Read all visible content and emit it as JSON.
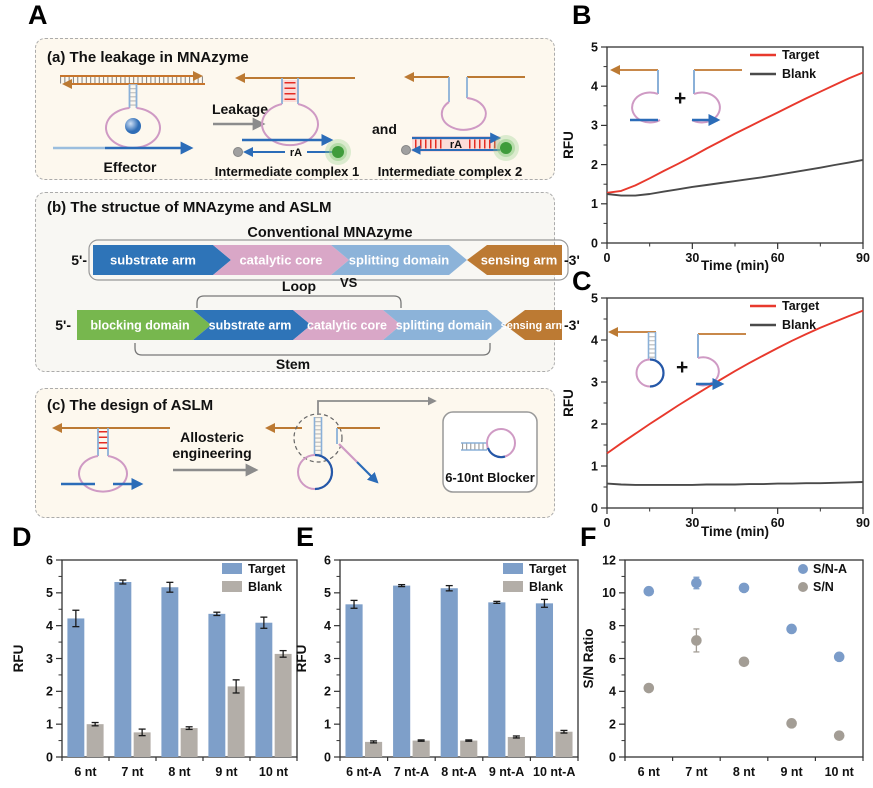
{
  "panels": {
    "A": "A",
    "B": "B",
    "C": "C",
    "D": "D",
    "E": "E",
    "F": "F"
  },
  "symbols": {
    "plus": "+"
  },
  "panelA": {
    "a": {
      "title": "(a)  The leakage in MNAzyme",
      "effector": "Effector",
      "leakage": "Leakage",
      "and": "and",
      "ic1": "Intermediate complex 1",
      "ic2": "Intermediate complex 2",
      "rA": "rA"
    },
    "b": {
      "title": "(b)  The structue of MNAzyme and ASLM",
      "conventional": "Conventional MNAzyme",
      "vs": "VS",
      "loop": "Loop",
      "stem": "Stem",
      "five": "5'-",
      "three": "-3'",
      "row1": [
        "substrate arm",
        "catalytic core",
        "splitting domain",
        "sensing arm"
      ],
      "row2": [
        "blocking domain",
        "substrate arm",
        "catalytic core",
        "splitting domain",
        "sensing arm"
      ]
    },
    "c": {
      "title": "(c)  The design of ASLM",
      "arrow1": "Allosteric",
      "arrow2": "engineering",
      "blocker": "6-10nt Blocker"
    }
  },
  "colors": {
    "target_red": "#e8392d",
    "blank_dark": "#4a4a4a",
    "bar_blue": "#7e9fc9",
    "bar_gray": "#b3aea8",
    "dot_blue": "#7b9cc9",
    "dot_gray": "#a39d95",
    "seg_blue": "#2e74b8",
    "seg_pink": "#d9a7c7",
    "seg_lightblue": "#8cb3d9",
    "seg_green": "#77b74e",
    "seg_brown": "#bc7a33"
  },
  "chart_data": [
    {
      "id": "B",
      "type": "line",
      "xlabel": "Time (min)",
      "ylabel": "RFU",
      "xlim": [
        0,
        90
      ],
      "ylim": [
        0,
        5
      ],
      "xticks": [
        0,
        30,
        60,
        90
      ],
      "x_minor_step": 15,
      "yticks": [
        0,
        1,
        2,
        3,
        4,
        5
      ],
      "y_minor_step": 0.5,
      "x": [
        0,
        5,
        10,
        15,
        20,
        25,
        30,
        35,
        40,
        45,
        50,
        55,
        60,
        65,
        70,
        75,
        80,
        85,
        90
      ],
      "series": [
        {
          "name": "Target",
          "color": "#e8392d",
          "y": [
            1.28,
            1.33,
            1.47,
            1.65,
            1.84,
            2.02,
            2.21,
            2.41,
            2.6,
            2.79,
            2.97,
            3.15,
            3.33,
            3.51,
            3.69,
            3.86,
            4.03,
            4.2,
            4.35
          ]
        },
        {
          "name": "Blank",
          "color": "#4a4a4a",
          "y": [
            1.25,
            1.21,
            1.21,
            1.25,
            1.31,
            1.37,
            1.43,
            1.48,
            1.53,
            1.58,
            1.63,
            1.68,
            1.74,
            1.8,
            1.86,
            1.92,
            1.99,
            2.05,
            2.12
          ]
        }
      ]
    },
    {
      "id": "C",
      "type": "line",
      "xlabel": "Time (min)",
      "ylabel": "RFU",
      "xlim": [
        0,
        90
      ],
      "ylim": [
        0,
        5
      ],
      "xticks": [
        0,
        30,
        60,
        90
      ],
      "x_minor_step": 15,
      "yticks": [
        0,
        1,
        2,
        3,
        4,
        5
      ],
      "y_minor_step": 0.5,
      "x": [
        0,
        5,
        10,
        15,
        20,
        25,
        30,
        35,
        40,
        45,
        50,
        55,
        60,
        65,
        70,
        75,
        80,
        85,
        90
      ],
      "series": [
        {
          "name": "Target",
          "color": "#e8392d",
          "y": [
            1.3,
            1.54,
            1.77,
            2.0,
            2.22,
            2.44,
            2.65,
            2.86,
            3.06,
            3.26,
            3.45,
            3.63,
            3.81,
            3.98,
            4.14,
            4.29,
            4.43,
            4.57,
            4.7
          ]
        },
        {
          "name": "Blank",
          "color": "#4a4a4a",
          "y": [
            0.58,
            0.56,
            0.55,
            0.55,
            0.55,
            0.55,
            0.55,
            0.56,
            0.56,
            0.56,
            0.57,
            0.57,
            0.58,
            0.58,
            0.59,
            0.59,
            0.6,
            0.61,
            0.62
          ]
        }
      ]
    },
    {
      "id": "D",
      "type": "bar",
      "ylabel": "RFU",
      "ylim": [
        0,
        6
      ],
      "yticks": [
        0,
        1,
        2,
        3,
        4,
        5,
        6
      ],
      "y_minor_step": 0.5,
      "categories": [
        "6 nt",
        "7 nt",
        "8 nt",
        "9 nt",
        "10 nt"
      ],
      "series": [
        {
          "name": "Target",
          "color": "#7e9fc9",
          "values": [
            4.22,
            5.33,
            5.17,
            4.36,
            4.09
          ],
          "errors": [
            0.25,
            0.06,
            0.15,
            0.05,
            0.17
          ]
        },
        {
          "name": "Blank",
          "color": "#b3aea8",
          "values": [
            1.0,
            0.75,
            0.88,
            2.15,
            3.14
          ],
          "errors": [
            0.05,
            0.1,
            0.04,
            0.2,
            0.1
          ]
        }
      ]
    },
    {
      "id": "E",
      "type": "bar",
      "ylabel": "RFU",
      "ylim": [
        0,
        6
      ],
      "yticks": [
        0,
        1,
        2,
        3,
        4,
        5,
        6
      ],
      "y_minor_step": 0.5,
      "categories": [
        "6 nt-A",
        "7 nt-A",
        "8 nt-A",
        "9 nt-A",
        "10 nt-A"
      ],
      "series": [
        {
          "name": "Target",
          "color": "#7e9fc9",
          "values": [
            4.65,
            5.22,
            5.14,
            4.71,
            4.68
          ],
          "errors": [
            0.12,
            0.03,
            0.08,
            0.03,
            0.12
          ]
        },
        {
          "name": "Blank",
          "color": "#b3aea8",
          "values": [
            0.46,
            0.5,
            0.5,
            0.61,
            0.77
          ],
          "errors": [
            0.03,
            0.02,
            0.02,
            0.03,
            0.04
          ]
        }
      ]
    },
    {
      "id": "F",
      "type": "scatter",
      "ylabel": "S/N Ratio",
      "ylim": [
        0,
        12
      ],
      "yticks": [
        0,
        2,
        4,
        6,
        8,
        10,
        12
      ],
      "y_minor_step": 1,
      "categories": [
        "6 nt",
        "7 nt",
        "8 nt",
        "9 nt",
        "10 nt"
      ],
      "series": [
        {
          "name": "S/N-A",
          "color": "#7b9cc9",
          "values": [
            10.1,
            10.6,
            10.3,
            7.8,
            6.1
          ],
          "errors": [
            0.15,
            0.35,
            0.15,
            0.1,
            0.1
          ]
        },
        {
          "name": "S/N",
          "color": "#a39d95",
          "values": [
            4.2,
            7.1,
            5.8,
            2.05,
            1.3
          ],
          "errors": [
            0.12,
            0.7,
            0.15,
            0.2,
            0.12
          ]
        }
      ]
    }
  ]
}
